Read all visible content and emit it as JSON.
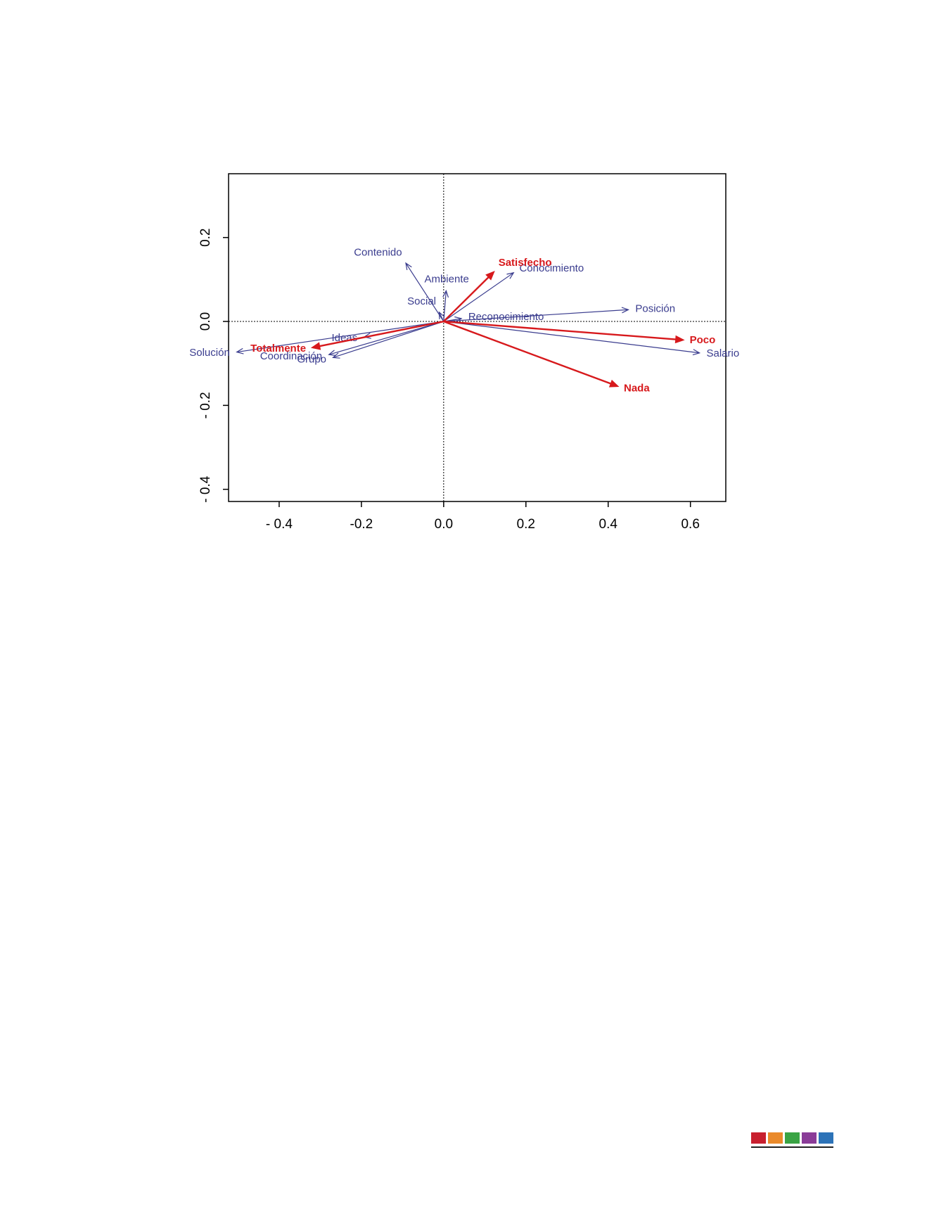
{
  "chart_data": {
    "type": "biplot",
    "xlim": [
      -0.523,
      0.686
    ],
    "ylim": [
      -0.429,
      0.352
    ],
    "xticks": [
      {
        "value": -0.4,
        "label": "- 0.4"
      },
      {
        "value": -0.2,
        "label": "-0.2"
      },
      {
        "value": 0,
        "label": "0.0"
      },
      {
        "value": 0.2,
        "label": "0.2"
      },
      {
        "value": 0.4,
        "label": "0.4"
      },
      {
        "value": 0.6,
        "label": "0.6"
      }
    ],
    "yticks": [
      {
        "value": -0.4,
        "label": "- 0.4"
      },
      {
        "value": -0.2,
        "label": "- 0.2"
      },
      {
        "value": 0,
        "label": "0.0"
      },
      {
        "value": 0.2,
        "label": "0.2"
      }
    ],
    "vectors": [
      {
        "label": "Contenido",
        "x": -0.092,
        "y": 0.139,
        "color": "#3a3c8e",
        "bold": false
      },
      {
        "label": "Conocimiento",
        "x": 0.17,
        "y": 0.116,
        "color": "#3a3c8e",
        "bold": false
      },
      {
        "label": "Ambiente",
        "x": 0.006,
        "y": 0.073,
        "color": "#3a3c8e",
        "bold": false
      },
      {
        "label": "Social",
        "x": -0.011,
        "y": 0.022,
        "color": "#3a3c8e",
        "bold": false
      },
      {
        "label": "Reconocimiento",
        "x": 0.043,
        "y": 0.007,
        "color": "#3a3c8e",
        "bold": false
      },
      {
        "label": "Posición",
        "x": 0.449,
        "y": 0.028,
        "color": "#3a3c8e",
        "bold": false
      },
      {
        "label": "Salario",
        "x": 0.622,
        "y": -0.075,
        "color": "#3a3c8e",
        "bold": false
      },
      {
        "label": "Ideas",
        "x": -0.193,
        "y": -0.037,
        "color": "#3a3c8e",
        "bold": false
      },
      {
        "label": "Solución",
        "x": -0.503,
        "y": -0.073,
        "color": "#3a3c8e",
        "bold": false
      },
      {
        "label": "Coordinación",
        "x": -0.279,
        "y": -0.079,
        "color": "#3a3c8e",
        "bold": false
      },
      {
        "label": "Grupo",
        "x": -0.269,
        "y": -0.086,
        "color": "#3a3c8e",
        "bold": false
      },
      {
        "label": "Satisfecho",
        "x": 0.121,
        "y": 0.117,
        "color": "#d7191c",
        "bold": true
      },
      {
        "label": "Poco",
        "x": 0.581,
        "y": -0.044,
        "color": "#d7191c",
        "bold": true
      },
      {
        "label": "Nada",
        "x": 0.422,
        "y": -0.154,
        "color": "#d7191c",
        "bold": true
      },
      {
        "label": "Totalmente",
        "x": -0.318,
        "y": -0.062,
        "color": "#d7191c",
        "bold": true
      }
    ]
  }
}
